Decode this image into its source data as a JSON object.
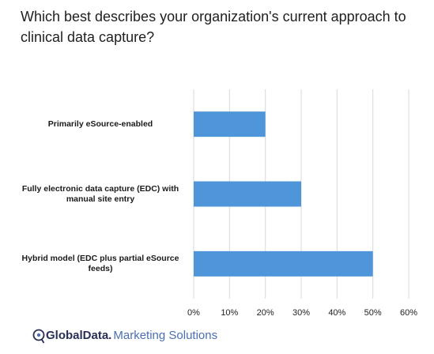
{
  "title": "Which best describes your organization's current approach to clinical data capture?",
  "footer": {
    "brand_main": "GlobalData.",
    "brand_sub": "Marketing Solutions",
    "logo_icon": "globaldata-logo-icon"
  },
  "chart_data": {
    "type": "bar",
    "orientation": "horizontal",
    "categories": [
      "Primarily eSource-enabled",
      "Fully electronic data capture (EDC) with manual site entry",
      "Hybrid model (EDC plus partial eSource feeds)"
    ],
    "values": [
      20,
      30,
      50
    ],
    "xlim": [
      0,
      60
    ],
    "x_ticks": [
      "0%",
      "10%",
      "20%",
      "30%",
      "40%",
      "50%",
      "60%"
    ],
    "grid": true,
    "bar_color": "#4e95d9",
    "grid_color": "#d9d9d9"
  }
}
